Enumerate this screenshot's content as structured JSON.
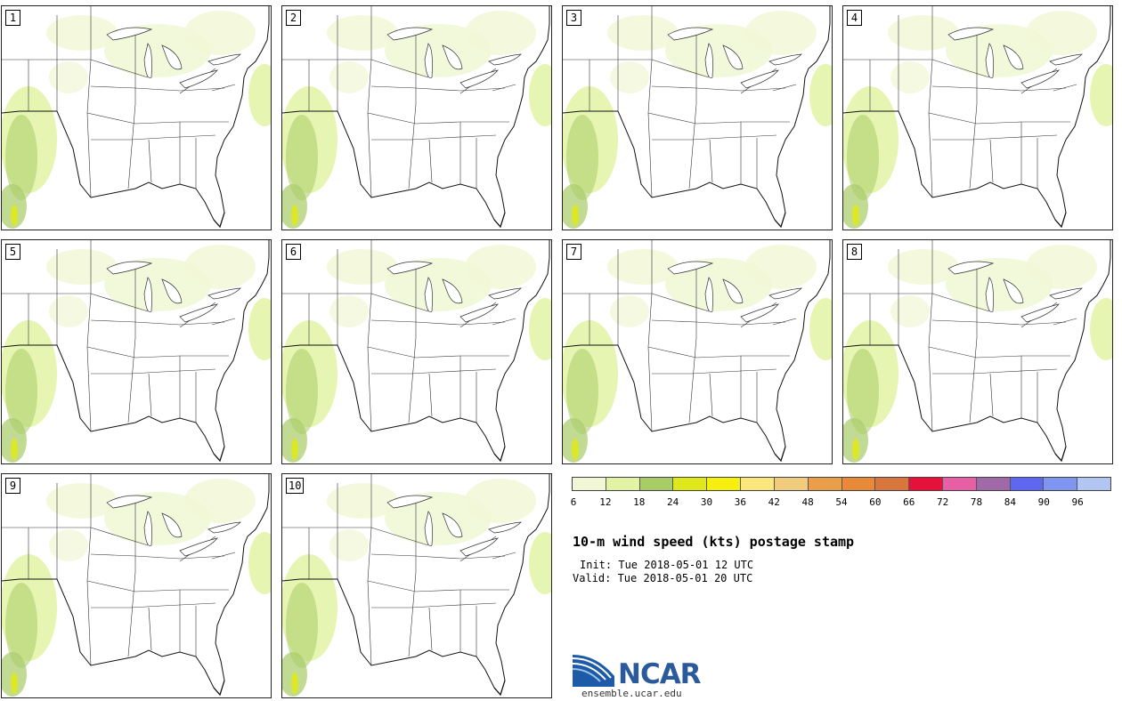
{
  "panels": [
    {
      "label": "1"
    },
    {
      "label": "2"
    },
    {
      "label": "3"
    },
    {
      "label": "4"
    },
    {
      "label": "5"
    },
    {
      "label": "6"
    },
    {
      "label": "7"
    },
    {
      "label": "8"
    },
    {
      "label": "9"
    },
    {
      "label": "10"
    }
  ],
  "legend": {
    "ticks": [
      "6",
      "12",
      "18",
      "24",
      "30",
      "36",
      "42",
      "48",
      "54",
      "60",
      "66",
      "72",
      "78",
      "84",
      "90",
      "96"
    ],
    "colors": [
      "#f1f7d6",
      "#e2f3a3",
      "#a8cc66",
      "#dfe81b",
      "#f7ef0d",
      "#fbe77c",
      "#f2cc7e",
      "#ea9e4a",
      "#e98a3b",
      "#d8763e",
      "#e8113c",
      "#e75fa4",
      "#a169a8",
      "#5e67ef",
      "#7f96f1",
      "#b3c5f3"
    ]
  },
  "title": "10-m wind speed (kts) postage stamp",
  "init": "Init: Tue 2018-05-01 12 UTC",
  "valid": "Valid: Tue 2018-05-01 20 UTC",
  "logo": {
    "text": "NCAR"
  },
  "url": "ensemble.ucar.edu",
  "map": {
    "water_color": "#ffffff",
    "land_color": "#ffffff",
    "boundary_color": "#333333"
  }
}
